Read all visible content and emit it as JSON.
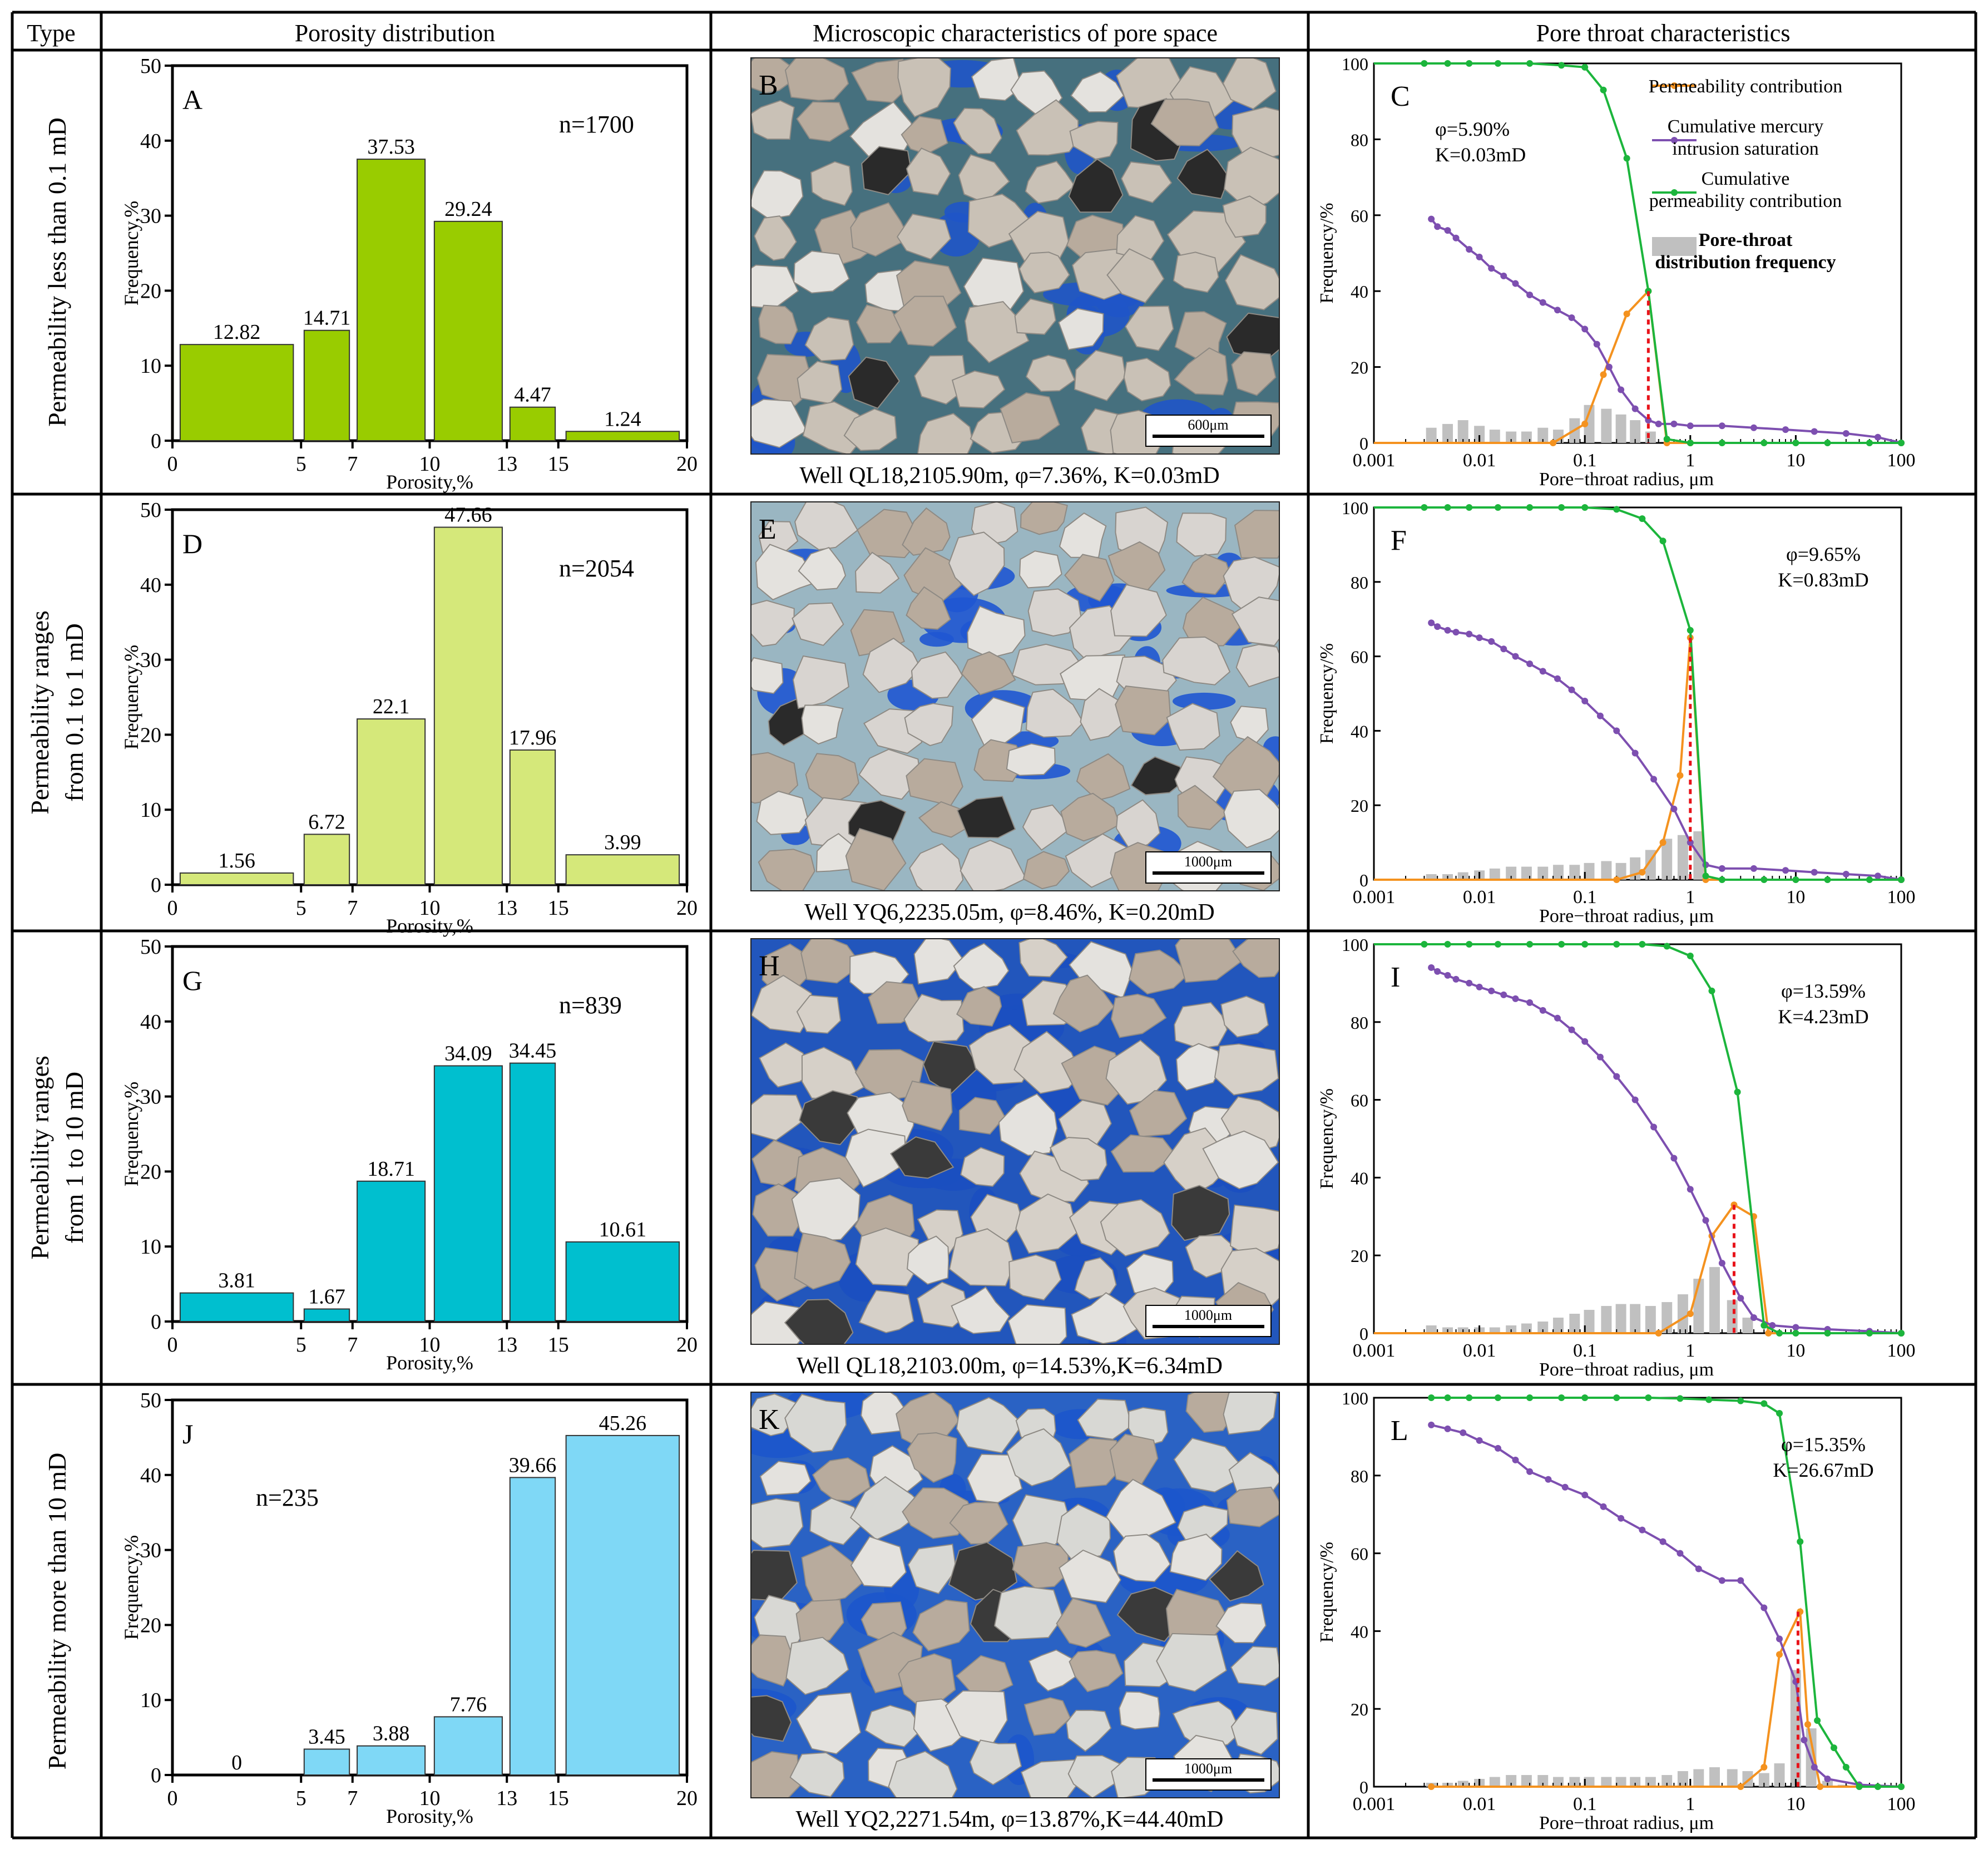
{
  "header": {
    "type": "Type",
    "porosity": "Porosity distribution",
    "micro": "Microscopic characteristics of pore space",
    "pore": "Pore throat characteristics"
  },
  "rows": [
    {
      "type_lines": [
        "Permeability less than 0.1 mD"
      ],
      "captions": {
        "bar": "A",
        "micro": "B",
        "pore": "C"
      },
      "micro_caption": "Well QL18,2105.90m, φ=7.36%, K=0.03mD",
      "scale_label": "600μm",
      "micro_palette": {
        "bg": "#46707e",
        "pore": "#1f55c8",
        "grain": "#c9c1b6",
        "dark": "#2a2a2a"
      }
    },
    {
      "type_lines": [
        "Permeability ranges",
        "from 0.1 to 1 mD"
      ],
      "captions": {
        "bar": "D",
        "micro": "E",
        "pore": "F"
      },
      "micro_caption": "Well YQ6,2235.05m, φ=8.46%, K=0.20mD",
      "scale_label": "1000μm",
      "micro_palette": {
        "bg": "#9ab6c2",
        "pore": "#1f57d2",
        "grain": "#d8d4d0",
        "dark": "#2a2a2a"
      }
    },
    {
      "type_lines": [
        "Permeability ranges",
        "from 1 to 10 mD"
      ],
      "captions": {
        "bar": "G",
        "micro": "H",
        "pore": "I"
      },
      "micro_caption": "Well QL18,2103.00m, φ=14.53%,K=6.34mD",
      "scale_label": "1000μm",
      "micro_palette": {
        "bg": "#2256bc",
        "pore": "#1b4fc0",
        "grain": "#d6d0c8",
        "dark": "#3a3a3a"
      }
    },
    {
      "type_lines": [
        "Permeability more than 10 mD"
      ],
      "captions": {
        "bar": "J",
        "micro": "K",
        "pore": "L"
      },
      "micro_caption": "Well YQ2,2271.54m, φ=13.87%,K=44.40mD",
      "scale_label": "1000μm",
      "micro_palette": {
        "bg": "#2a62c4",
        "pore": "#1c56cc",
        "grain": "#d8d8d4",
        "dark": "#3a3a3a"
      }
    }
  ],
  "chart_data": [
    {
      "id": "A",
      "type": "bar",
      "categories": [
        "0-5",
        "5-7",
        "7-10",
        "10-13",
        "13-15",
        "15-20"
      ],
      "bin_edges": [
        0,
        5,
        7,
        10,
        13,
        15,
        20
      ],
      "tick_labels": [
        "0",
        "5",
        "7",
        "10",
        "13",
        "15",
        "20"
      ],
      "values": [
        12.82,
        14.71,
        37.53,
        29.24,
        4.47,
        1.24
      ],
      "labels": [
        "12.82",
        "14.71",
        "37.53",
        "29.24",
        "4.47",
        "1.24"
      ],
      "n_label": "n=1700",
      "color": "#99cc00",
      "xlabel": "Porosity,%",
      "ylabel": "Frequency,%",
      "ylim": [
        0,
        50
      ],
      "yticks": [
        "0",
        "10",
        "20",
        "30",
        "40",
        "50"
      ]
    },
    {
      "id": "D",
      "type": "bar",
      "categories": [
        "0-5",
        "5-7",
        "7-10",
        "10-13",
        "13-15",
        "15-20"
      ],
      "bin_edges": [
        0,
        5,
        7,
        10,
        13,
        15,
        20
      ],
      "tick_labels": [
        "0",
        "5",
        "7",
        "10",
        "13",
        "15",
        "20"
      ],
      "values": [
        1.56,
        6.72,
        22.1,
        47.66,
        17.96,
        3.99
      ],
      "labels": [
        "1.56",
        "6.72",
        "22.1",
        "47.66",
        "17.96",
        "3.99"
      ],
      "n_label": "n=2054",
      "color": "#d5e87a",
      "xlabel": "Porosity,%",
      "ylabel": "Frequency,%",
      "ylim": [
        0,
        50
      ],
      "yticks": [
        "0",
        "10",
        "20",
        "30",
        "40",
        "50"
      ]
    },
    {
      "id": "G",
      "type": "bar",
      "categories": [
        "0-5",
        "5-7",
        "7-10",
        "10-13",
        "13-15",
        "15-20"
      ],
      "bin_edges": [
        0,
        5,
        7,
        10,
        13,
        15,
        20
      ],
      "tick_labels": [
        "0",
        "5",
        "7",
        "10",
        "13",
        "15",
        "20"
      ],
      "values": [
        3.81,
        1.67,
        18.71,
        34.09,
        34.45,
        10.61
      ],
      "labels": [
        "3.81",
        "1.67",
        "18.71",
        "34.09",
        "34.45",
        "10.61"
      ],
      "n_label": "n=839",
      "color": "#00bfcf",
      "xlabel": "Porosity,%",
      "ylabel": "Frequency,%",
      "ylim": [
        0,
        50
      ],
      "yticks": [
        "0",
        "10",
        "20",
        "30",
        "40",
        "50"
      ]
    },
    {
      "id": "J",
      "type": "bar",
      "categories": [
        "0-5",
        "5-7",
        "7-10",
        "10-13",
        "13-15",
        "15-20"
      ],
      "bin_edges": [
        0,
        5,
        7,
        10,
        13,
        15,
        20
      ],
      "tick_labels": [
        "0",
        "5",
        "7",
        "10",
        "13",
        "15",
        "20"
      ],
      "values": [
        0,
        3.45,
        3.88,
        7.76,
        39.66,
        45.26
      ],
      "labels": [
        "0",
        "3.45",
        "3.88",
        "7.76",
        "39.66",
        "45.26"
      ],
      "n_label": "n=235",
      "color": "#7fd8f6",
      "xlabel": "Porosity,%",
      "ylabel": "Frequency,%",
      "ylim": [
        0,
        50
      ],
      "yticks": [
        "0",
        "10",
        "20",
        "30",
        "40",
        "50"
      ]
    },
    {
      "id": "C",
      "type": "line",
      "stats": [
        "φ=5.90%",
        "K=0.03mD"
      ],
      "legend": [
        {
          "key": "perm",
          "lines": [
            "Permeability contribution"
          ]
        },
        {
          "key": "cum_hg",
          "lines": [
            "Cumulative mercury",
            "intrusion saturation"
          ]
        },
        {
          "key": "cum_perm",
          "lines": [
            "Cumulative",
            "permeability contribution"
          ]
        },
        {
          "key": "hist",
          "lines": [
            "Pore-throat",
            "distribution frequency"
          ]
        }
      ],
      "xlabel": "Pore−throat  radius, μm",
      "ylabel": "Frequency/%",
      "xlim": [
        0.001,
        100
      ],
      "ylim": [
        0,
        100
      ],
      "xticks": [
        "0.001",
        "0.01",
        "0.1",
        "1",
        "10",
        "100"
      ],
      "yticks": [
        "0",
        "20",
        "40",
        "60",
        "80",
        "100"
      ],
      "cum_perm": {
        "x": [
          0.001,
          0.0015,
          0.002,
          0.003,
          0.005,
          0.008,
          0.015,
          0.03,
          0.06,
          0.1,
          0.15,
          0.25,
          0.4,
          0.6,
          1,
          2,
          5,
          10,
          20,
          50,
          100
        ],
        "y": [
          100,
          100,
          100,
          100,
          100,
          100,
          100,
          100,
          99.5,
          99,
          93,
          75,
          40,
          1,
          0,
          0,
          0,
          0,
          0,
          0,
          0
        ]
      },
      "cum_hg": {
        "x": [
          0.0035,
          0.004,
          0.005,
          0.006,
          0.008,
          0.01,
          0.013,
          0.017,
          0.022,
          0.03,
          0.04,
          0.055,
          0.075,
          0.1,
          0.13,
          0.17,
          0.22,
          0.3,
          0.4,
          0.5,
          0.7,
          1,
          2,
          4,
          8,
          15,
          30,
          60,
          100
        ],
        "y": [
          59,
          57,
          56,
          54,
          51,
          49,
          46,
          44,
          42,
          39,
          37,
          35,
          33,
          30,
          26,
          20,
          14,
          9,
          6,
          5,
          5,
          4.5,
          4.5,
          4,
          3.5,
          3,
          2.5,
          1.5,
          0
        ]
      },
      "perm": {
        "x": [
          0.001,
          0.05,
          0.1,
          0.15,
          0.25,
          0.4,
          0.6,
          1,
          100
        ],
        "y": [
          0,
          0,
          5,
          18,
          34,
          40,
          0,
          0,
          0
        ]
      },
      "hist": {
        "x": [
          0.0035,
          0.005,
          0.007,
          0.01,
          0.014,
          0.02,
          0.028,
          0.04,
          0.056,
          0.08,
          0.11,
          0.16,
          0.22,
          0.3,
          0.42
        ],
        "y": [
          4,
          5,
          6,
          4.5,
          3.5,
          3,
          3,
          4,
          3.5,
          6.5,
          10,
          9,
          7.5,
          6,
          3
        ]
      },
      "marker_x": 0.4,
      "marker_y": 40,
      "stats_pos": "top-left"
    },
    {
      "id": "F",
      "type": "line",
      "stats": [
        "φ=9.65%",
        "K=0.83mD"
      ],
      "legend": [],
      "xlabel": "Pore−throat  radius, μm",
      "ylabel": "Frequency/%",
      "xlim": [
        0.001,
        100
      ],
      "ylim": [
        0,
        100
      ],
      "xticks": [
        "0.001",
        "0.01",
        "0.1",
        "1",
        "10",
        "100"
      ],
      "yticks": [
        "0",
        "20",
        "40",
        "60",
        "80",
        "100"
      ],
      "cum_perm": {
        "x": [
          0.001,
          0.0015,
          0.002,
          0.003,
          0.005,
          0.008,
          0.015,
          0.03,
          0.06,
          0.1,
          0.2,
          0.35,
          0.55,
          1,
          1.4,
          2,
          5,
          10,
          20,
          50,
          100
        ],
        "y": [
          100,
          100,
          100,
          100,
          100,
          100,
          100,
          100,
          100,
          100,
          99.5,
          97,
          91,
          67,
          1,
          0,
          0,
          0,
          0,
          0,
          0
        ]
      },
      "cum_hg": {
        "x": [
          0.0035,
          0.004,
          0.005,
          0.006,
          0.008,
          0.01,
          0.013,
          0.017,
          0.022,
          0.03,
          0.04,
          0.055,
          0.075,
          0.1,
          0.14,
          0.2,
          0.3,
          0.45,
          0.7,
          1,
          1.4,
          2,
          4,
          8,
          15,
          30,
          60,
          100
        ],
        "y": [
          69,
          68,
          67,
          66.5,
          66,
          65,
          64,
          62,
          60,
          58,
          56,
          54,
          51,
          48,
          44,
          40,
          34,
          27,
          19,
          10,
          4,
          3,
          3,
          2.5,
          2,
          1.5,
          1,
          0
        ]
      },
      "perm": {
        "x": [
          0.001,
          0.2,
          0.35,
          0.55,
          0.8,
          1,
          1.4,
          100
        ],
        "y": [
          0,
          0,
          2,
          10,
          28,
          65,
          0,
          0
        ]
      },
      "hist": {
        "x": [
          0.0035,
          0.005,
          0.007,
          0.01,
          0.014,
          0.02,
          0.028,
          0.04,
          0.056,
          0.08,
          0.11,
          0.16,
          0.22,
          0.3,
          0.42,
          0.6,
          0.85,
          1.2
        ],
        "y": [
          1.5,
          1.5,
          2,
          2.5,
          3,
          3.5,
          3.5,
          3.5,
          4,
          4,
          4.5,
          5,
          4.5,
          6,
          8,
          11,
          12,
          13
        ]
      },
      "marker_x": 1,
      "marker_y": 65,
      "stats_pos": "top-right"
    },
    {
      "id": "I",
      "type": "line",
      "stats": [
        "φ=13.59%",
        "K=4.23mD"
      ],
      "legend": [],
      "xlabel": "Pore−throat  radius, μm",
      "ylabel": "Frequency/%",
      "xlim": [
        0.001,
        100
      ],
      "ylim": [
        0,
        100
      ],
      "xticks": [
        "0.001",
        "0.01",
        "0.1",
        "1",
        "10",
        "100"
      ],
      "yticks": [
        "0",
        "20",
        "40",
        "60",
        "80",
        "100"
      ],
      "cum_perm": {
        "x": [
          0.001,
          0.0015,
          0.002,
          0.003,
          0.005,
          0.008,
          0.015,
          0.03,
          0.06,
          0.1,
          0.2,
          0.35,
          0.6,
          1,
          1.6,
          2.8,
          5,
          7,
          10,
          20,
          50,
          100
        ],
        "y": [
          100,
          100,
          100,
          100,
          100,
          100,
          100,
          100,
          100,
          100,
          100,
          100,
          99.5,
          97,
          88,
          62,
          2,
          0,
          0,
          0,
          0,
          0
        ]
      },
      "cum_hg": {
        "x": [
          0.0035,
          0.004,
          0.005,
          0.006,
          0.008,
          0.01,
          0.013,
          0.017,
          0.022,
          0.03,
          0.04,
          0.055,
          0.075,
          0.1,
          0.14,
          0.2,
          0.3,
          0.45,
          0.7,
          1,
          1.4,
          2,
          3,
          4,
          6,
          10,
          20,
          50,
          100
        ],
        "y": [
          94,
          93,
          92,
          91,
          90,
          89,
          88,
          87,
          86,
          85,
          83,
          81,
          78,
          75,
          71,
          66,
          60,
          53,
          45,
          37,
          29,
          18,
          9,
          4,
          2,
          1.5,
          1,
          0.5,
          0
        ]
      },
      "perm": {
        "x": [
          0.001,
          0.5,
          1,
          1.6,
          2.6,
          4,
          5.5,
          100
        ],
        "y": [
          0,
          0,
          5,
          25,
          33,
          30,
          0,
          0
        ]
      },
      "hist": {
        "x": [
          0.0035,
          0.005,
          0.007,
          0.01,
          0.014,
          0.02,
          0.028,
          0.04,
          0.056,
          0.08,
          0.11,
          0.16,
          0.22,
          0.3,
          0.42,
          0.6,
          0.85,
          1.2,
          1.7,
          2.5,
          3.5
        ],
        "y": [
          2,
          1.5,
          1.5,
          1.5,
          1.5,
          2,
          2.5,
          3,
          4,
          5,
          6,
          7,
          7.5,
          7.5,
          7,
          8,
          10,
          14,
          17,
          8.5,
          4
        ]
      },
      "marker_x": 2.6,
      "marker_y": 33,
      "stats_pos": "top-right"
    },
    {
      "id": "L",
      "type": "line",
      "stats": [
        "φ=15.35%",
        "K=26.67mD"
      ],
      "legend": [],
      "xlabel": "Pore−throat  radius, μm",
      "ylabel": "Frequency/%",
      "xlim": [
        0.001,
        100
      ],
      "ylim": [
        0,
        100
      ],
      "xticks": [
        "0.001",
        "0.01",
        "0.1",
        "1",
        "10",
        "100"
      ],
      "yticks": [
        "0",
        "20",
        "40",
        "60",
        "80",
        "100"
      ],
      "cum_perm": {
        "x": [
          0.0035,
          0.005,
          0.008,
          0.015,
          0.03,
          0.06,
          0.1,
          0.2,
          0.4,
          0.8,
          1.5,
          3,
          5,
          7,
          11,
          16,
          23,
          30,
          40,
          60,
          100
        ],
        "y": [
          100,
          100,
          100,
          100,
          100,
          100,
          100,
          100,
          100,
          99.8,
          99.5,
          99.2,
          98.5,
          96,
          63,
          17,
          10,
          5,
          0,
          0,
          0
        ]
      },
      "cum_hg": {
        "x": [
          0.0035,
          0.005,
          0.007,
          0.01,
          0.015,
          0.022,
          0.03,
          0.045,
          0.065,
          0.1,
          0.15,
          0.22,
          0.35,
          0.55,
          0.8,
          1.2,
          2,
          3,
          5,
          7,
          10,
          12,
          15,
          20,
          40,
          100
        ],
        "y": [
          93,
          92,
          91,
          89,
          87,
          84,
          81,
          79,
          77,
          75,
          72,
          69,
          66,
          63,
          60,
          56,
          53,
          53,
          46,
          38,
          27,
          12,
          5,
          2,
          0.5,
          0
        ]
      },
      "perm": {
        "x": [
          0.0035,
          3,
          5,
          7,
          11,
          13,
          17,
          100
        ],
        "y": [
          0,
          0,
          5,
          34,
          45,
          16,
          0,
          0
        ]
      },
      "hist": {
        "x": [
          0.0035,
          0.005,
          0.007,
          0.01,
          0.014,
          0.02,
          0.028,
          0.04,
          0.056,
          0.08,
          0.11,
          0.16,
          0.22,
          0.3,
          0.42,
          0.6,
          0.85,
          1.2,
          1.7,
          2.5,
          3.5,
          5,
          7,
          10,
          14,
          20,
          28
        ],
        "y": [
          1,
          1,
          1.5,
          2,
          2.5,
          3,
          3,
          3,
          2.5,
          2.5,
          2.5,
          2.5,
          2.5,
          2.5,
          2.5,
          3,
          4,
          4.5,
          5,
          4.5,
          4,
          3.5,
          6,
          30,
          15,
          1.5,
          0.5
        ]
      },
      "marker_x": 10.5,
      "marker_y": 45,
      "stats_pos": "top-right"
    }
  ]
}
